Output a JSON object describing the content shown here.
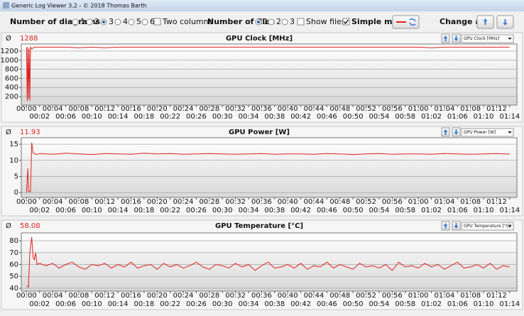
{
  "window_title": "Generic Log Viewer 3.2 - © 2018 Thomas Barth",
  "toolbar": {
    "diagrams": {
      "label": "Number of diagrams",
      "options": [
        "1",
        "2",
        "3",
        "4",
        "5",
        "6"
      ],
      "selected": "3"
    },
    "two_columns": {
      "label": "Two columns",
      "checked": false
    },
    "files": {
      "label": "Number of files",
      "options": [
        "1",
        "2",
        "3"
      ],
      "selected": "1"
    },
    "show_files": {
      "label": "Show files",
      "checked": false
    },
    "simple_mode": {
      "label": "Simple mode",
      "checked": true
    },
    "change_all": "Change all"
  },
  "chart_data": [
    {
      "type": "line",
      "title": "GPU Clock [MHz]",
      "average_symbol": "Ø",
      "current_value": 1288,
      "selector": "GPU Clock [MHz]",
      "x": [
        0,
        0.1,
        0.2,
        0.3,
        0.4,
        0.5,
        0.6,
        0.8,
        1.2,
        2,
        4,
        6,
        8,
        10,
        12,
        14,
        16,
        18,
        20,
        22,
        24,
        26,
        28,
        30,
        32,
        34,
        36,
        38,
        40,
        42,
        44,
        46,
        48,
        50,
        52,
        54,
        56,
        58,
        60,
        62,
        64,
        66,
        68,
        70,
        72,
        74
      ],
      "series": [
        {
          "color": "#e02020",
          "values": [
            1288,
            100,
            1288,
            150,
            1250,
            100,
            1288,
            1250,
            1288,
            1288,
            1288,
            1288,
            1275,
            1288,
            1275,
            1288,
            1288,
            1288,
            1288,
            1288,
            1288,
            1288,
            1288,
            1288,
            1288,
            1288,
            1288,
            1288,
            1288,
            1288,
            1288,
            1288,
            1288,
            1288,
            1288,
            1288,
            1288,
            1288,
            1288,
            1275,
            1288,
            1288,
            1288,
            1288,
            1288,
            1288
          ]
        }
      ],
      "xlim": [
        -0.8,
        75.1
      ],
      "ylim": [
        12,
        1356
      ],
      "yticks": [
        200,
        400,
        600,
        800,
        1000,
        1200
      ],
      "grid": true,
      "xticks": [
        {
          "value": 0,
          "label": "00:00"
        },
        {
          "value": 2,
          "label": "00:02"
        },
        {
          "value": 4,
          "label": "00:04"
        },
        {
          "value": 6,
          "label": "00:06"
        },
        {
          "value": 8,
          "label": "00:08"
        },
        {
          "value": 10,
          "label": "00:10"
        },
        {
          "value": 12,
          "label": "00:12"
        },
        {
          "value": 14,
          "label": "00:14"
        },
        {
          "value": 16,
          "label": "00:16"
        },
        {
          "value": 18,
          "label": "00:18"
        },
        {
          "value": 20,
          "label": "00:20"
        },
        {
          "value": 22,
          "label": "00:22"
        },
        {
          "value": 24,
          "label": "00:24"
        },
        {
          "value": 26,
          "label": "00:26"
        },
        {
          "value": 28,
          "label": "00:28"
        },
        {
          "value": 30,
          "label": "00:30"
        },
        {
          "value": 32,
          "label": "00:32"
        },
        {
          "value": 34,
          "label": "00:34"
        },
        {
          "value": 36,
          "label": "00:36"
        },
        {
          "value": 38,
          "label": "00:38"
        },
        {
          "value": 40,
          "label": "00:40"
        },
        {
          "value": 42,
          "label": "00:42"
        },
        {
          "value": 44,
          "label": "00:44"
        },
        {
          "value": 46,
          "label": "00:46"
        },
        {
          "value": 48,
          "label": "00:48"
        },
        {
          "value": 50,
          "label": "00:50"
        },
        {
          "value": 52,
          "label": "00:52"
        },
        {
          "value": 54,
          "label": "00:54"
        },
        {
          "value": 56,
          "label": "00:56"
        },
        {
          "value": 58,
          "label": "00:58"
        },
        {
          "value": 60,
          "label": "01:00"
        },
        {
          "value": 62,
          "label": "01:02"
        },
        {
          "value": 64,
          "label": "01:04"
        },
        {
          "value": 66,
          "label": "01:06"
        },
        {
          "value": 68,
          "label": "01:08"
        },
        {
          "value": 70,
          "label": "01:10"
        },
        {
          "value": 72,
          "label": "01:12"
        },
        {
          "value": 74,
          "label": "01:14"
        }
      ]
    },
    {
      "type": "line",
      "title": "GPU Power [W]",
      "average_symbol": "Ø",
      "current_value": 11.93,
      "selector": "GPU Power [W]",
      "x": [
        0,
        0.2,
        0.3,
        0.4,
        0.6,
        0.8,
        1,
        1.5,
        2,
        4,
        6,
        8,
        10,
        12,
        14,
        16,
        18,
        20,
        22,
        24,
        26,
        28,
        30,
        32,
        34,
        36,
        38,
        40,
        42,
        44,
        46,
        48,
        50,
        52,
        54,
        56,
        58,
        60,
        62,
        64,
        66,
        68,
        70,
        72,
        74
      ],
      "series": [
        {
          "color": "#e02020",
          "values": [
            0,
            7.5,
            0.3,
            0.3,
            0.3,
            15.5,
            12.3,
            11.8,
            12.1,
            11.9,
            12.2,
            12.0,
            11.8,
            12.1,
            12.0,
            11.9,
            12.2,
            12.0,
            12.1,
            11.9,
            12.0,
            12.1,
            12.0,
            11.9,
            12.0,
            12.1,
            11.9,
            12.0,
            12.0,
            11.9,
            12.1,
            12.0,
            11.8,
            12.0,
            12.1,
            11.9,
            12.0,
            12.0,
            11.9,
            12.1,
            12.0,
            11.9,
            12.0,
            12.1,
            11.93
          ]
        }
      ],
      "xlim": [
        -0.8,
        75.1
      ],
      "ylim": [
        -1.5,
        17
      ],
      "yticks": [
        0,
        5,
        10,
        15
      ],
      "grid": true,
      "xticks": [
        {
          "value": 0,
          "label": "00:00"
        },
        {
          "value": 2,
          "label": "00:02"
        },
        {
          "value": 4,
          "label": "00:04"
        },
        {
          "value": 6,
          "label": "00:06"
        },
        {
          "value": 8,
          "label": "00:08"
        },
        {
          "value": 10,
          "label": "00:10"
        },
        {
          "value": 12,
          "label": "00:12"
        },
        {
          "value": 14,
          "label": "00:14"
        },
        {
          "value": 16,
          "label": "00:16"
        },
        {
          "value": 18,
          "label": "00:18"
        },
        {
          "value": 20,
          "label": "00:20"
        },
        {
          "value": 22,
          "label": "00:22"
        },
        {
          "value": 24,
          "label": "00:24"
        },
        {
          "value": 26,
          "label": "00:26"
        },
        {
          "value": 28,
          "label": "00:28"
        },
        {
          "value": 30,
          "label": "00:30"
        },
        {
          "value": 32,
          "label": "00:32"
        },
        {
          "value": 34,
          "label": "00:34"
        },
        {
          "value": 36,
          "label": "00:36"
        },
        {
          "value": 38,
          "label": "00:38"
        },
        {
          "value": 40,
          "label": "00:40"
        },
        {
          "value": 42,
          "label": "00:42"
        },
        {
          "value": 44,
          "label": "00:44"
        },
        {
          "value": 46,
          "label": "00:46"
        },
        {
          "value": 48,
          "label": "00:48"
        },
        {
          "value": 50,
          "label": "00:50"
        },
        {
          "value": 52,
          "label": "00:52"
        },
        {
          "value": 54,
          "label": "00:54"
        },
        {
          "value": 56,
          "label": "00:56"
        },
        {
          "value": 58,
          "label": "00:58"
        },
        {
          "value": 60,
          "label": "01:00"
        },
        {
          "value": 62,
          "label": "01:02"
        },
        {
          "value": 64,
          "label": "01:04"
        },
        {
          "value": 66,
          "label": "01:06"
        },
        {
          "value": 68,
          "label": "01:08"
        },
        {
          "value": 70,
          "label": "01:10"
        },
        {
          "value": 72,
          "label": "01:12"
        },
        {
          "value": 74,
          "label": "01:14"
        }
      ]
    },
    {
      "type": "line",
      "title": "GPU Temperature [°C]",
      "average_symbol": "Ø",
      "current_value": 58.08,
      "selector": "GPU Temperature [°C]",
      "x": [
        0,
        0.3,
        0.5,
        0.8,
        1.0,
        1.2,
        1.4,
        1.6,
        2,
        3,
        4,
        5,
        6,
        7,
        8,
        9,
        10,
        11,
        12,
        13,
        14,
        15,
        16,
        17,
        18,
        19,
        20,
        21,
        22,
        23,
        24,
        25,
        26,
        27,
        28,
        29,
        30,
        31,
        32,
        33,
        34,
        35,
        36,
        37,
        38,
        39,
        40,
        41,
        42,
        43,
        44,
        45,
        46,
        47,
        48,
        49,
        50,
        51,
        52,
        53,
        54,
        55,
        56,
        57,
        58,
        59,
        60,
        61,
        62,
        63,
        64,
        65,
        66,
        67,
        68,
        69,
        70,
        71,
        72,
        73,
        74
      ],
      "series": [
        {
          "color": "#e02020",
          "values": [
            42,
            41,
            70,
            83,
            66,
            64,
            70,
            60,
            61,
            59,
            61,
            57,
            60,
            62,
            58,
            56,
            60,
            59,
            61,
            57,
            60,
            58,
            62,
            57,
            59,
            60,
            56,
            61,
            58,
            60,
            57,
            59,
            62,
            58,
            56,
            60,
            59,
            57,
            61,
            58,
            60,
            55,
            59,
            62,
            57,
            58,
            60,
            57,
            61,
            56,
            59,
            58,
            62,
            57,
            60,
            58,
            56,
            61,
            58,
            59,
            57,
            60,
            55,
            62,
            58,
            59,
            57,
            61,
            58,
            60,
            56,
            59,
            62,
            57,
            58,
            60,
            57,
            61,
            56,
            59,
            58
          ]
        }
      ],
      "xlim": [
        -0.8,
        75.1
      ],
      "ylim": [
        37.6,
        86.6
      ],
      "yticks": [
        40,
        50,
        60,
        70,
        80
      ],
      "grid": true,
      "xticks": [
        {
          "value": 0,
          "label": "00:00"
        },
        {
          "value": 2,
          "label": "00:02"
        },
        {
          "value": 4,
          "label": "00:04"
        },
        {
          "value": 6,
          "label": "00:06"
        },
        {
          "value": 8,
          "label": "00:08"
        },
        {
          "value": 10,
          "label": "00:10"
        },
        {
          "value": 12,
          "label": "00:12"
        },
        {
          "value": 14,
          "label": "00:14"
        },
        {
          "value": 16,
          "label": "00:16"
        },
        {
          "value": 18,
          "label": "00:18"
        },
        {
          "value": 20,
          "label": "00:20"
        },
        {
          "value": 22,
          "label": "00:22"
        },
        {
          "value": 24,
          "label": "00:24"
        },
        {
          "value": 26,
          "label": "00:26"
        },
        {
          "value": 28,
          "label": "00:28"
        },
        {
          "value": 30,
          "label": "00:30"
        },
        {
          "value": 32,
          "label": "00:32"
        },
        {
          "value": 34,
          "label": "00:34"
        },
        {
          "value": 36,
          "label": "00:36"
        },
        {
          "value": 38,
          "label": "00:38"
        },
        {
          "value": 40,
          "label": "00:40"
        },
        {
          "value": 42,
          "label": "00:42"
        },
        {
          "value": 44,
          "label": "00:44"
        },
        {
          "value": 46,
          "label": "00:46"
        },
        {
          "value": 48,
          "label": "00:48"
        },
        {
          "value": 50,
          "label": "00:50"
        },
        {
          "value": 52,
          "label": "00:52"
        },
        {
          "value": 54,
          "label": "00:54"
        },
        {
          "value": 56,
          "label": "00:56"
        },
        {
          "value": 58,
          "label": "00:58"
        },
        {
          "value": 60,
          "label": "01:00"
        },
        {
          "value": 62,
          "label": "01:02"
        },
        {
          "value": 64,
          "label": "01:04"
        },
        {
          "value": 66,
          "label": "01:06"
        },
        {
          "value": 68,
          "label": "01:08"
        },
        {
          "value": 70,
          "label": "01:10"
        },
        {
          "value": 72,
          "label": "01:12"
        },
        {
          "value": 74,
          "label": "01:14"
        }
      ]
    }
  ]
}
